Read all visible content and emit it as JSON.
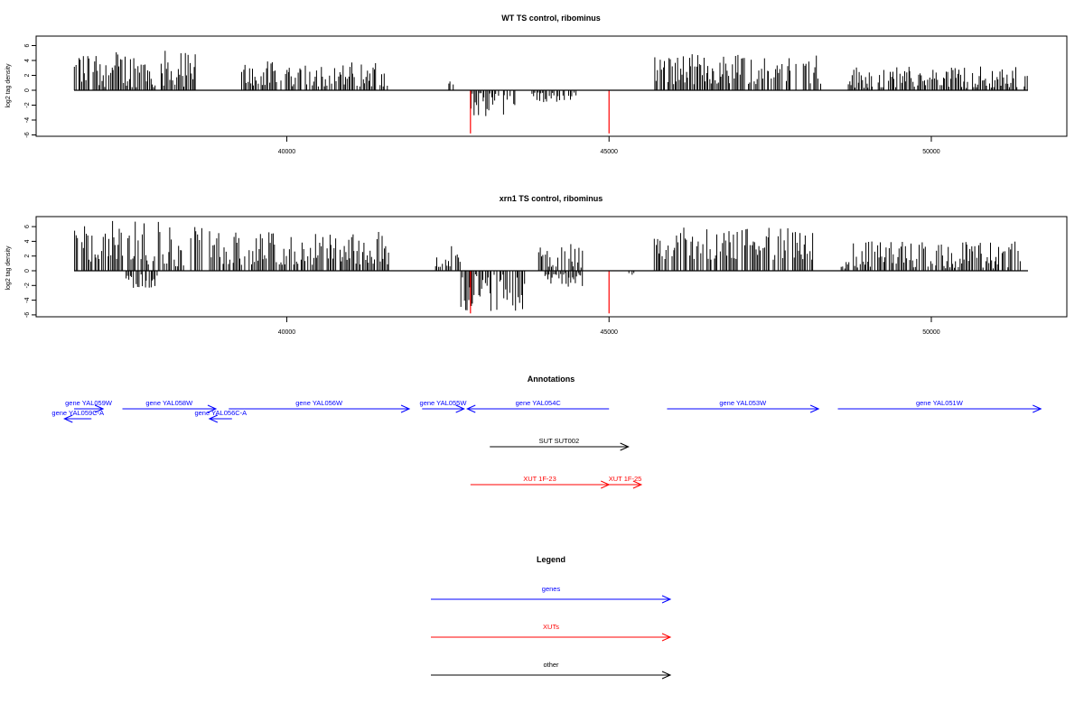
{
  "chart_data": [
    {
      "type": "bar",
      "title": "WT TS control, ribominus",
      "ylabel": "log2 tag density",
      "xlim": [
        36500,
        52000
      ],
      "ylim": [
        -6,
        7
      ],
      "x_ticks": [
        40000,
        45000,
        50000
      ],
      "x_tick_labels": [
        "40000",
        "45000",
        "50000"
      ],
      "y_ticks": [
        -6,
        -4,
        -2,
        0,
        2,
        4,
        6
      ],
      "y_tick_labels": [
        "-6",
        "-4",
        "-2",
        "0",
        "2",
        "4",
        "6"
      ],
      "baseline": {
        "x_start": 36700,
        "x_end": 51500,
        "y": 0
      },
      "series": [
        {
          "color": "#000000",
          "segments": [
            {
              "x_start": 36700,
              "x_end": 38600,
              "min": 0.4,
              "max": 5.4
            },
            {
              "x_start": 39300,
              "x_end": 41600,
              "min": 0.5,
              "max": 3.9
            },
            {
              "x_start": 42500,
              "x_end": 42600,
              "min": 0.5,
              "max": 1.3
            },
            {
              "x_start": 45700,
              "x_end": 48300,
              "min": 0.8,
              "max": 4.9
            },
            {
              "x_start": 48700,
              "x_end": 51500,
              "min": 0.3,
              "max": 3.3
            }
          ]
        },
        {
          "color": "#000000",
          "segments": [
            {
              "x_start": 42830,
              "x_end": 43600,
              "min": -3.7,
              "max": -0.4
            },
            {
              "x_start": 43800,
              "x_end": 44500,
              "min": -1.6,
              "max": -0.3
            }
          ]
        },
        {
          "color": "#ff0000",
          "spikes": [
            {
              "x": 42850,
              "y": -5.8
            },
            {
              "x": 45000,
              "y": -5.8
            }
          ]
        }
      ]
    },
    {
      "type": "bar",
      "title": "xrn1 TS control, ribominus",
      "ylabel": "log2 tag density",
      "xlim": [
        36500,
        52000
      ],
      "ylim": [
        -6,
        7
      ],
      "x_ticks": [
        40000,
        45000,
        50000
      ],
      "x_tick_labels": [
        "40000",
        "45000",
        "50000"
      ],
      "y_ticks": [
        -6,
        -4,
        -2,
        0,
        2,
        4,
        6
      ],
      "y_tick_labels": [
        "-6",
        "-4",
        "-2",
        "0",
        "2",
        "4",
        "6"
      ],
      "baseline": {
        "x_start": 36700,
        "x_end": 51500,
        "y": 0
      },
      "series": [
        {
          "color": "#000000",
          "segments": [
            {
              "x_start": 36700,
              "x_end": 38700,
              "min": 0.5,
              "max": 6.8
            },
            {
              "x_start": 38800,
              "x_end": 41600,
              "min": 0.8,
              "max": 5.4
            },
            {
              "x_start": 42300,
              "x_end": 42700,
              "min": 0.4,
              "max": 3.5
            },
            {
              "x_start": 43900,
              "x_end": 44600,
              "min": 0.4,
              "max": 3.7
            },
            {
              "x_start": 45700,
              "x_end": 48200,
              "min": 1.5,
              "max": 5.9
            },
            {
              "x_start": 48600,
              "x_end": 51400,
              "min": 0.3,
              "max": 4.0
            }
          ]
        },
        {
          "color": "#000000",
          "segments": [
            {
              "x_start": 37500,
              "x_end": 38000,
              "min": -2.4,
              "max": -0.5
            },
            {
              "x_start": 42700,
              "x_end": 43700,
              "min": -5.6,
              "max": -0.4
            },
            {
              "x_start": 44000,
              "x_end": 44600,
              "min": -2.3,
              "max": -0.3
            },
            {
              "x_start": 45300,
              "x_end": 45400,
              "min": -1.1,
              "max": -0.3
            }
          ]
        },
        {
          "color": "#ff0000",
          "spikes": [
            {
              "x": 42850,
              "y": -5.8
            },
            {
              "x": 45000,
              "y": -5.8
            }
          ]
        }
      ]
    }
  ],
  "annotations": {
    "title": "Annotations",
    "features": [
      {
        "label": "gene YAL059W",
        "kind": "gene",
        "strand": "+",
        "row": 0,
        "x_start": 36700,
        "x_end": 37150
      },
      {
        "label": "gene YAL059C-A",
        "kind": "gene",
        "strand": "-",
        "row": 1,
        "x_start": 36550,
        "x_end": 36970
      },
      {
        "label": "gene YAL058W",
        "kind": "gene",
        "strand": "+",
        "row": 0,
        "x_start": 37450,
        "x_end": 38900
      },
      {
        "label": "gene YAL056C-A",
        "kind": "gene",
        "strand": "-",
        "row": 1,
        "x_start": 38800,
        "x_end": 39150
      },
      {
        "label": "gene YAL056W",
        "kind": "gene",
        "strand": "+",
        "row": 0,
        "x_start": 39100,
        "x_end": 41900
      },
      {
        "label": "gene YAL055W",
        "kind": "gene",
        "strand": "+",
        "row": 0,
        "x_start": 42100,
        "x_end": 42750
      },
      {
        "label": "gene YAL054C",
        "kind": "gene",
        "strand": "-",
        "row": 0,
        "x_start": 42800,
        "x_end": 45000
      },
      {
        "label": "gene YAL053W",
        "kind": "gene",
        "strand": "+",
        "row": 0,
        "x_start": 45900,
        "x_end": 48250
      },
      {
        "label": "gene YAL051W",
        "kind": "gene",
        "strand": "+",
        "row": 0,
        "x_start": 48550,
        "x_end": 51700
      },
      {
        "label": "SUT SUT002",
        "kind": "other",
        "strand": "+",
        "row": 2,
        "x_start": 43150,
        "x_end": 45300
      },
      {
        "label": "XUT 1F-23",
        "kind": "xut",
        "strand": "+",
        "row": 3,
        "x_start": 42850,
        "x_end": 45000
      },
      {
        "label": "XUT 1F-25",
        "kind": "xut",
        "strand": "+",
        "row": 3,
        "x_start": 45000,
        "x_end": 45500
      }
    ]
  },
  "legend": {
    "title": "Legend",
    "items": [
      {
        "label": "genes",
        "kind": "gene"
      },
      {
        "label": "XUTs",
        "kind": "xut"
      },
      {
        "label": "other",
        "kind": "other"
      }
    ]
  },
  "colors": {
    "gene": "#0000ff",
    "xut": "#ff0000",
    "other": "#000000",
    "bar": "#000000",
    "axis": "#000000"
  }
}
